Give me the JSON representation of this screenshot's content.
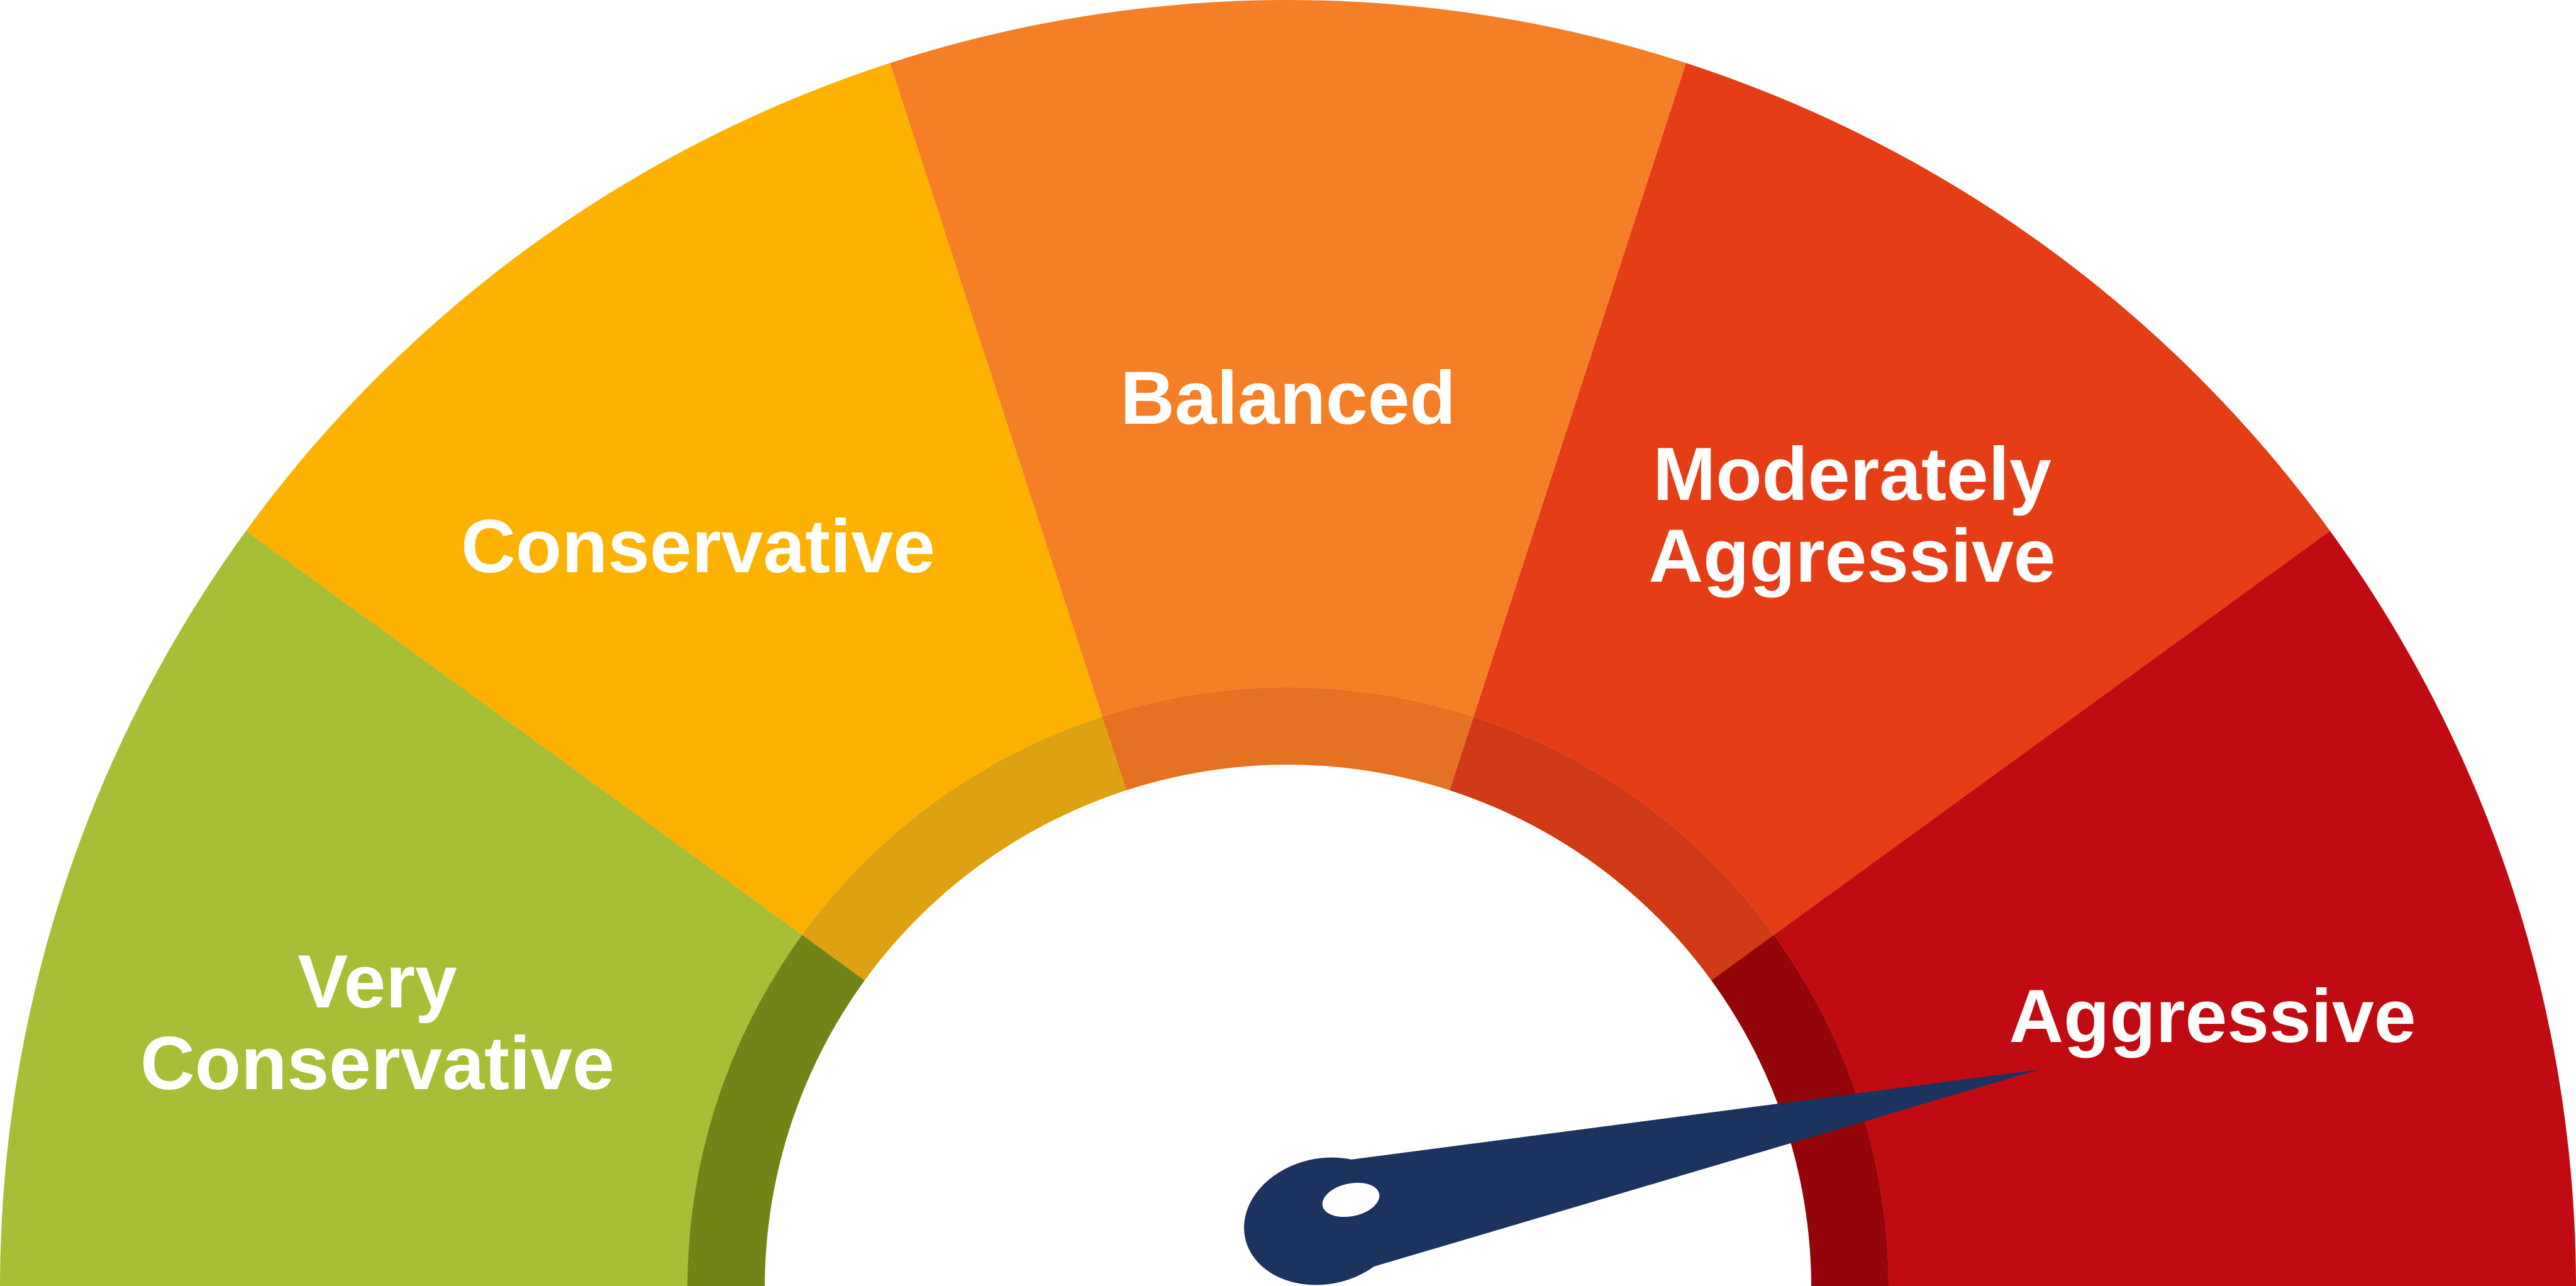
{
  "gauge": {
    "segments": [
      {
        "key": "very_conservative",
        "lines": [
          "Very",
          "Conservative"
        ],
        "color": "#A7BE37",
        "inner_band_color": "#718418"
      },
      {
        "key": "conservative",
        "lines": [
          "Conservative"
        ],
        "color": "#FDB101",
        "inner_band_color": "#DEA111"
      },
      {
        "key": "balanced",
        "lines": [
          "Balanced"
        ],
        "color": "#F57F27",
        "inner_band_color": "#E47222"
      },
      {
        "key": "moderately_aggressive",
        "lines": [
          "Moderately",
          "Aggressive"
        ],
        "color": "#E53E17",
        "inner_band_color": "#D03A16"
      },
      {
        "key": "aggressive",
        "lines": [
          "Aggressive"
        ],
        "color": "#C10B12",
        "inner_band_color": "#940509"
      }
    ],
    "needle": {
      "color": "#1B335E",
      "hub_dot_color": "#ffffff",
      "points_to": "aggressive",
      "level_fraction": 0.91
    }
  }
}
